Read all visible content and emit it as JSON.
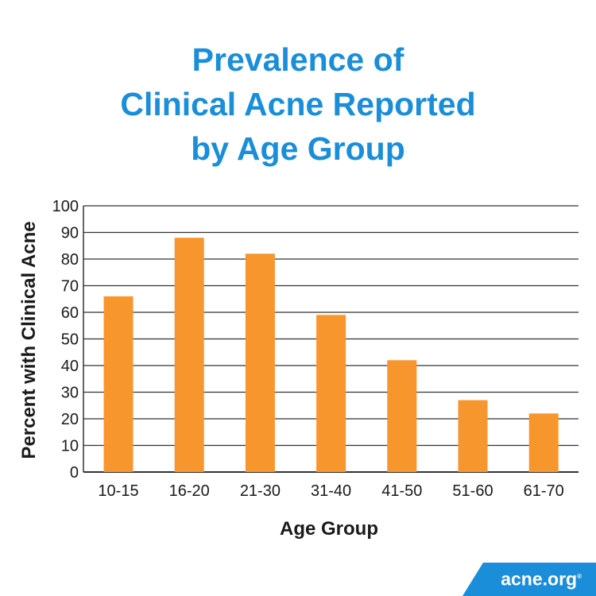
{
  "chart_data": {
    "type": "bar",
    "title": [
      "Prevalence of",
      "Clinical Acne Reported",
      "by Age Group"
    ],
    "xlabel": "Age Group",
    "ylabel": "Percent with Clinical Acne",
    "categories": [
      "10-15",
      "16-20",
      "21-30",
      "31-40",
      "41-50",
      "51-60",
      "61-70"
    ],
    "values": [
      66,
      88,
      82,
      59,
      42,
      27,
      22
    ],
    "ylim": [
      0,
      100
    ],
    "yticks": [
      0,
      10,
      20,
      30,
      40,
      50,
      60,
      70,
      80,
      90,
      100
    ],
    "grid": true,
    "colors": {
      "bar": "#f7962d",
      "title": "#1a8ed8",
      "grid": "#333333"
    }
  },
  "branding": {
    "logo_text": "acne.org",
    "logo_mark": "®",
    "badge_color": "#1a8ed8"
  }
}
